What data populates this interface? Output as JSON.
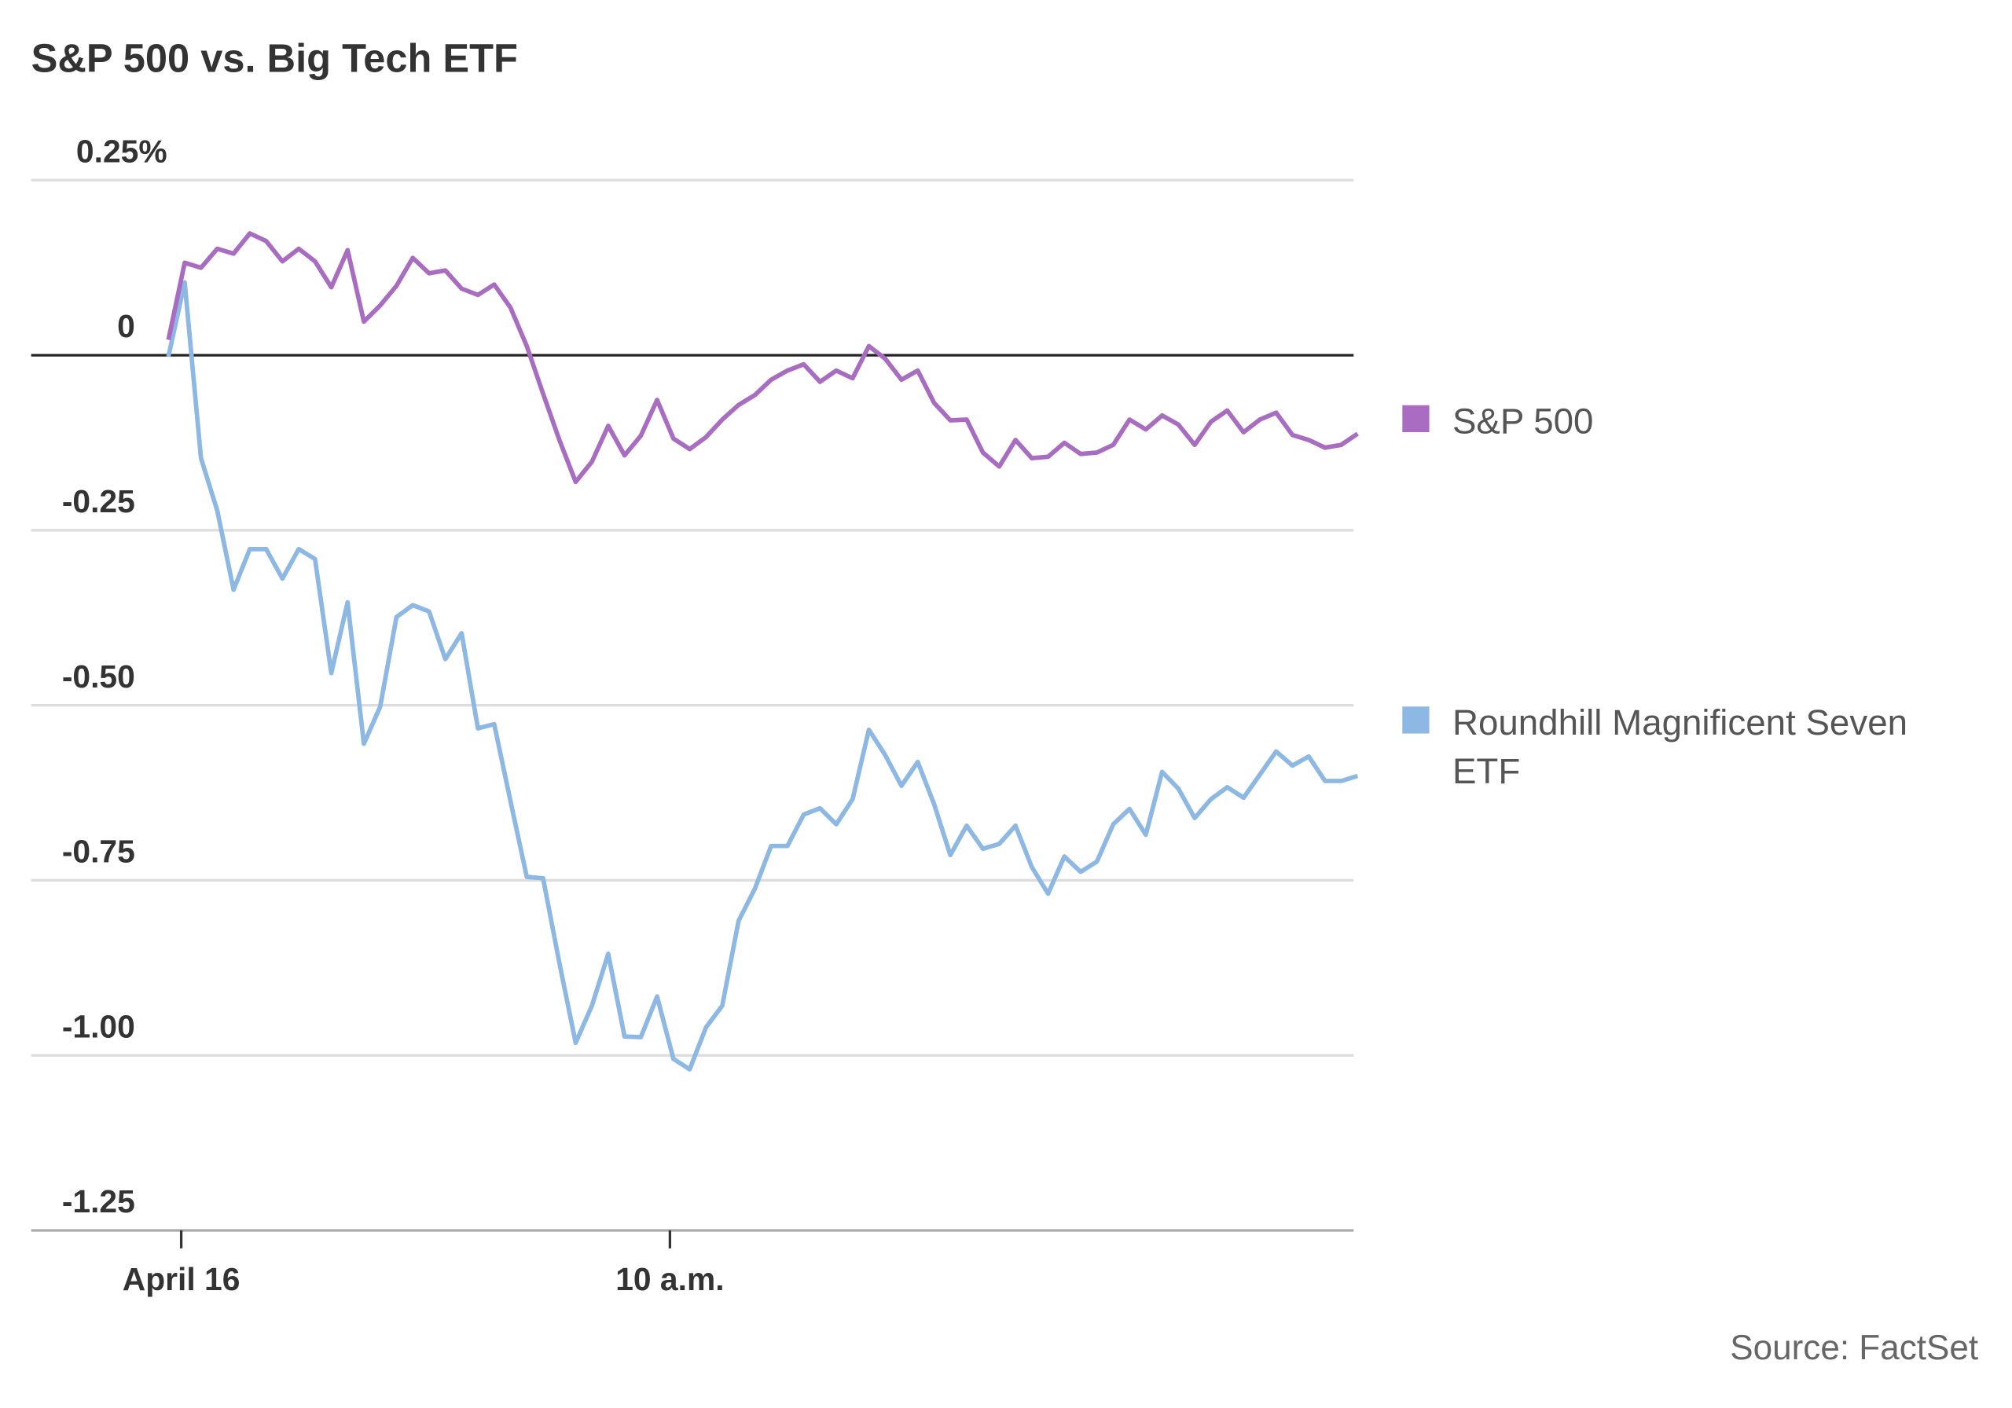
{
  "chart_data": {
    "type": "line",
    "title": "S&P 500 vs. Big Tech ETF",
    "xlabel": "",
    "ylabel": "",
    "x_start": "9:30",
    "interval_minutes": 1,
    "x_ticks": [
      {
        "label": "April 16",
        "time": "9:30"
      },
      {
        "label": "10 a.m.",
        "time": "10:00"
      }
    ],
    "y_ticks": [
      {
        "value": 0.25,
        "label": "0.25%"
      },
      {
        "value": 0,
        "label": "0"
      },
      {
        "value": -0.25,
        "label": "-0.25"
      },
      {
        "value": -0.5,
        "label": "-0.50"
      },
      {
        "value": -0.75,
        "label": "-0.75"
      },
      {
        "value": -1.0,
        "label": "-1.00"
      },
      {
        "value": -1.25,
        "label": "-1.25"
      }
    ],
    "ylim": [
      -1.25,
      0.25
    ],
    "grid": true,
    "legend_position": "right",
    "series": [
      {
        "name": "S&P 500",
        "color": "#a86cc1",
        "values": [
          0.022,
          0.132,
          0.125,
          0.152,
          0.145,
          0.174,
          0.163,
          0.134,
          0.152,
          0.134,
          0.097,
          0.15,
          0.048,
          0.071,
          0.099,
          0.139,
          0.117,
          0.121,
          0.095,
          0.086,
          0.101,
          0.068,
          0.013,
          -0.055,
          -0.121,
          -0.181,
          -0.152,
          -0.101,
          -0.143,
          -0.115,
          -0.064,
          -0.119,
          -0.134,
          -0.117,
          -0.092,
          -0.071,
          -0.057,
          -0.035,
          -0.022,
          -0.013,
          -0.038,
          -0.022,
          -0.033,
          0.013,
          -0.005,
          -0.035,
          -0.022,
          -0.068,
          -0.093,
          -0.092,
          -0.139,
          -0.159,
          -0.121,
          -0.147,
          -0.145,
          -0.125,
          -0.141,
          -0.139,
          -0.128,
          -0.092,
          -0.106,
          -0.086,
          -0.099,
          -0.128,
          -0.095,
          -0.079,
          -0.11,
          -0.092,
          -0.082,
          -0.114,
          -0.121,
          -0.132,
          -0.128,
          -0.112
        ]
      },
      {
        "name": "Roundhill Magnificent Seven ETF",
        "name_lines": [
          "Roundhill Magnificent Seven",
          "ETF"
        ],
        "color": "#8db8e3",
        "values": [
          -0.002,
          0.104,
          -0.147,
          -0.222,
          -0.335,
          -0.277,
          -0.277,
          -0.319,
          -0.277,
          -0.291,
          -0.454,
          -0.353,
          -0.555,
          -0.502,
          -0.374,
          -0.357,
          -0.366,
          -0.434,
          -0.397,
          -0.533,
          -0.527,
          -0.637,
          -0.745,
          -0.747,
          -0.868,
          -0.982,
          -0.929,
          -0.855,
          -0.973,
          -0.974,
          -0.916,
          -1.005,
          -1.02,
          -0.96,
          -0.929,
          -0.808,
          -0.762,
          -0.701,
          -0.701,
          -0.656,
          -0.647,
          -0.67,
          -0.634,
          -0.535,
          -0.571,
          -0.615,
          -0.581,
          -0.641,
          -0.714,
          -0.672,
          -0.705,
          -0.698,
          -0.672,
          -0.731,
          -0.769,
          -0.716,
          -0.738,
          -0.723,
          -0.67,
          -0.648,
          -0.685,
          -0.595,
          -0.619,
          -0.661,
          -0.634,
          -0.617,
          -0.632,
          -0.599,
          -0.566,
          -0.586,
          -0.573,
          -0.608,
          -0.608,
          -0.601
        ]
      }
    ],
    "source": "Source: FactSet"
  }
}
